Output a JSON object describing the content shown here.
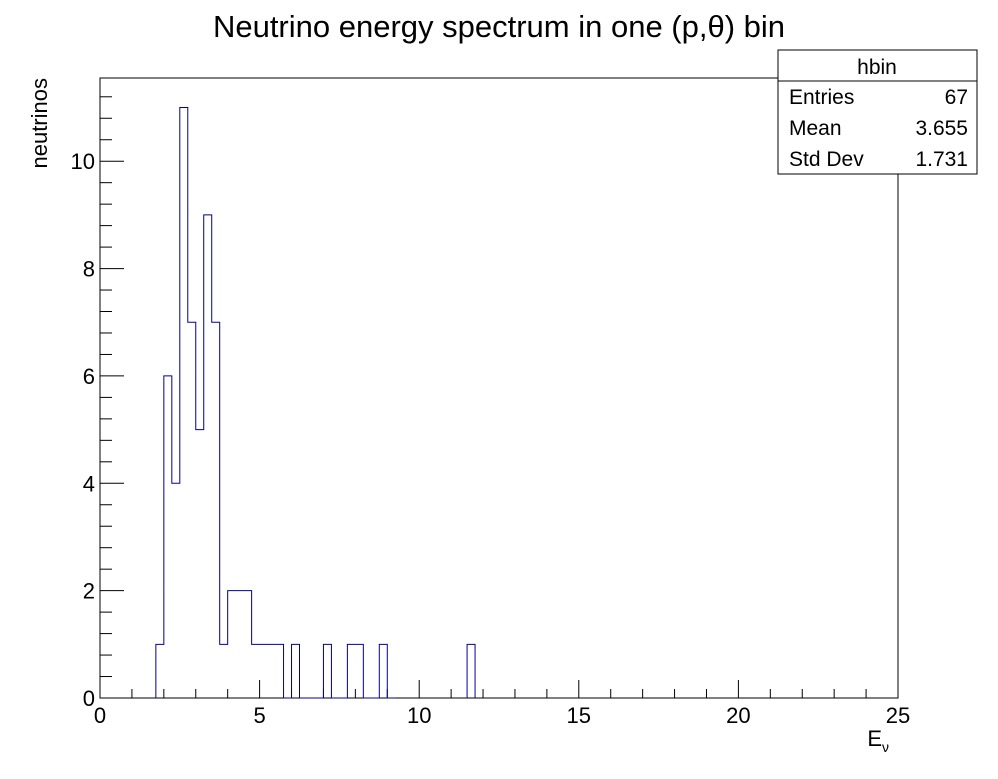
{
  "chart_data": {
    "type": "bar",
    "title": "Neutrino energy spectrum in one (p,θ) bin",
    "xlabel": "E",
    "xlabel_subscript": "ν",
    "ylabel": "neutrinos",
    "xlim": [
      0,
      25
    ],
    "ylim": [
      0,
      11.55
    ],
    "x_ticks": [
      0,
      5,
      10,
      15,
      20,
      25
    ],
    "y_ticks": [
      0,
      2,
      4,
      6,
      8,
      10
    ],
    "grid": false,
    "line_color": "#000099",
    "bin_width": 0.25,
    "bins": [
      {
        "x": 1.75,
        "value": 1
      },
      {
        "x": 2.0,
        "value": 6
      },
      {
        "x": 2.25,
        "value": 4
      },
      {
        "x": 2.5,
        "value": 11
      },
      {
        "x": 2.75,
        "value": 7
      },
      {
        "x": 3.0,
        "value": 5
      },
      {
        "x": 3.25,
        "value": 9
      },
      {
        "x": 3.5,
        "value": 7
      },
      {
        "x": 3.75,
        "value": 1
      },
      {
        "x": 4.0,
        "value": 2
      },
      {
        "x": 4.25,
        "value": 2
      },
      {
        "x": 4.5,
        "value": 2
      },
      {
        "x": 4.75,
        "value": 1
      },
      {
        "x": 5.0,
        "value": 1
      },
      {
        "x": 5.25,
        "value": 1
      },
      {
        "x": 5.5,
        "value": 1
      },
      {
        "x": 5.75,
        "value": 0
      },
      {
        "x": 6.0,
        "value": 1
      },
      {
        "x": 6.25,
        "value": 0
      },
      {
        "x": 6.5,
        "value": 0
      },
      {
        "x": 6.75,
        "value": 0
      },
      {
        "x": 7.0,
        "value": 1
      },
      {
        "x": 7.25,
        "value": 0
      },
      {
        "x": 7.5,
        "value": 0
      },
      {
        "x": 7.75,
        "value": 1
      },
      {
        "x": 8.0,
        "value": 1
      },
      {
        "x": 8.25,
        "value": 0
      },
      {
        "x": 8.5,
        "value": 0
      },
      {
        "x": 8.75,
        "value": 1
      },
      {
        "x": 9.0,
        "value": 0
      },
      {
        "x": 11.5,
        "value": 1
      }
    ],
    "stats_box": {
      "name": "hbin",
      "rows": [
        {
          "label": "Entries",
          "value": "67"
        },
        {
          "label": "Mean",
          "value": "3.655"
        },
        {
          "label": "Std Dev",
          "value": "1.731"
        }
      ]
    }
  }
}
